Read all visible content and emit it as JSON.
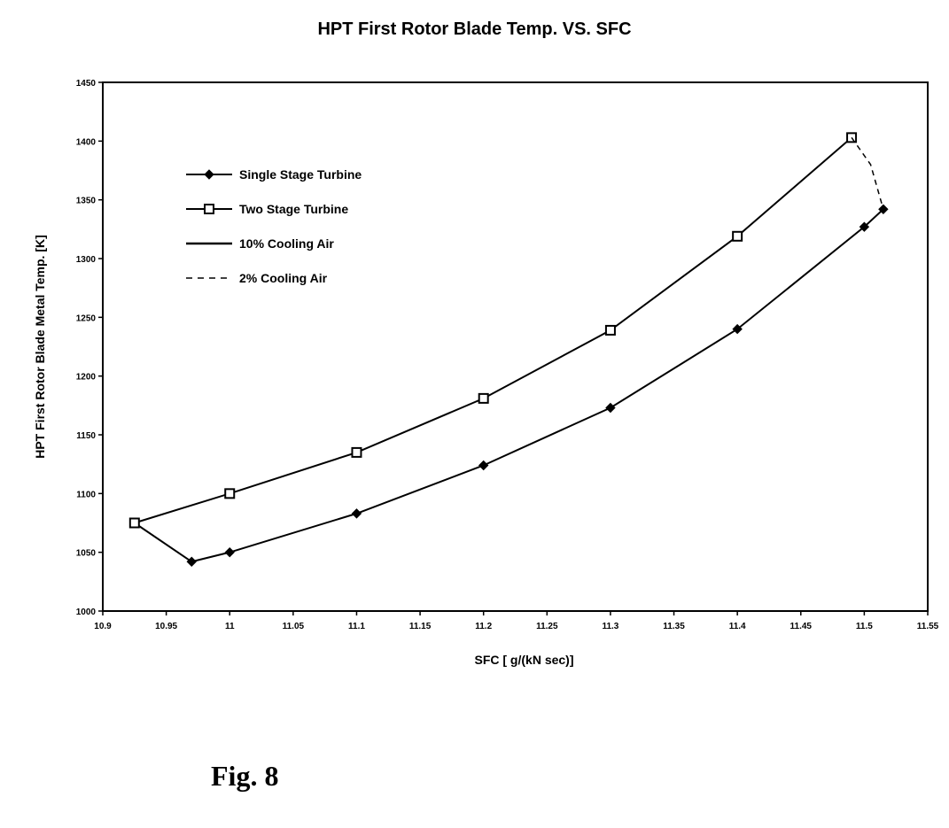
{
  "figure_label": "Fig. 8",
  "chart_data": {
    "type": "line",
    "title": "HPT First Rotor Blade Temp. VS. SFC",
    "xlabel": "SFC [ g/(kN sec)]",
    "ylabel": "HPT First Rotor Blade Metal Temp. [K]",
    "xlim": [
      10.9,
      11.55
    ],
    "ylim": [
      1000,
      1450
    ],
    "x_ticks": [
      10.9,
      10.95,
      11.0,
      11.05,
      11.1,
      11.15,
      11.2,
      11.25,
      11.3,
      11.35,
      11.4,
      11.45,
      11.5,
      11.55
    ],
    "x_tick_labels": [
      "10.9",
      "10.95",
      "11",
      "11.05",
      "11.1",
      "11.15",
      "11.2",
      "11.25",
      "11.3",
      "11.35",
      "11.4",
      "11.45",
      "11.5",
      "11.55"
    ],
    "y_ticks": [
      1000,
      1050,
      1100,
      1150,
      1200,
      1250,
      1300,
      1350,
      1400,
      1450
    ],
    "y_tick_labels": [
      "1000",
      "1050",
      "1100",
      "1150",
      "1200",
      "1250",
      "1300",
      "1350",
      "1400",
      "1450"
    ],
    "grid": false,
    "legend_position": "upper-left",
    "series": [
      {
        "name": "Single Stage Turbine",
        "marker": "filled-diamond",
        "line": "solid",
        "x": [
          10.925,
          10.97,
          11.0,
          11.1,
          11.2,
          11.3,
          11.4,
          11.5,
          11.515
        ],
        "y": [
          1075,
          1042,
          1050,
          1083,
          1124,
          1173,
          1240,
          1327,
          1342
        ]
      },
      {
        "name": "Two Stage Turbine",
        "marker": "open-square",
        "line": "solid",
        "x": [
          10.925,
          11.0,
          11.1,
          11.2,
          11.3,
          11.4,
          11.49
        ],
        "y": [
          1075,
          1100,
          1135,
          1181,
          1239,
          1319,
          1403
        ]
      }
    ],
    "cooling_lines": [
      {
        "name": "10% Cooling Air",
        "line": "solid",
        "x": [
          10.925,
          10.925
        ],
        "y": [
          1075,
          1075
        ]
      },
      {
        "name": "2% Cooling Air",
        "line": "dashed",
        "x": [
          11.49,
          11.505,
          11.515
        ],
        "y": [
          1403,
          1380,
          1342
        ]
      }
    ]
  }
}
